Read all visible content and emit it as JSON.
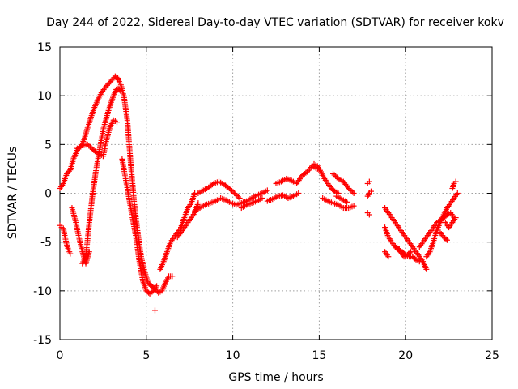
{
  "chart_data": {
    "type": "scatter",
    "title": "Day 244 of 2022, Sidereal Day-to-day VTEC variation (SDTVAR) for receiver kokv",
    "xlabel": "GPS time / hours",
    "ylabel": "SDTVAR / TECUs",
    "xlim": [
      0,
      25
    ],
    "ylim": [
      -15,
      15
    ],
    "xticks": [
      0,
      5,
      10,
      15,
      20,
      25
    ],
    "yticks": [
      -15,
      -10,
      -5,
      0,
      5,
      10,
      15
    ],
    "xtick_labels": [
      "0",
      "5",
      "10",
      "15",
      "20",
      "25"
    ],
    "ytick_labels": [
      "-15",
      "-10",
      "-5",
      "0",
      "5",
      "10",
      "15"
    ],
    "grid": true,
    "marker": "+",
    "series": [
      {
        "name": "SDTVAR",
        "color": "#ff0000",
        "tracks": [
          {
            "x": [
              0.0,
              0.2,
              0.4,
              0.6,
              0.8,
              1.0,
              1.2,
              1.4,
              1.6,
              1.8,
              2.0,
              2.2,
              2.4,
              2.6,
              2.8,
              3.0,
              3.2,
              3.35
            ],
            "y": [
              0.5,
              1.0,
              2.0,
              2.4,
              3.6,
              4.4,
              4.8,
              5.5,
              6.7,
              7.8,
              8.8,
              9.6,
              10.3,
              10.8,
              11.2,
              11.6,
              12.0,
              11.8
            ]
          },
          {
            "x": [
              1.0,
              1.3,
              1.6,
              1.9,
              2.1,
              2.3,
              2.5,
              2.7,
              2.9,
              3.1,
              3.3
            ],
            "y": [
              4.6,
              4.9,
              5.0,
              4.5,
              4.2,
              4.0,
              3.8,
              5.5,
              6.8,
              7.5,
              7.3
            ]
          },
          {
            "x": [
              0.0,
              0.1,
              0.2,
              0.3,
              0.4,
              0.5,
              0.6
            ],
            "y": [
              -3.3,
              -3.5,
              -3.6,
              -4.5,
              -5.3,
              -5.8,
              -6.2
            ]
          },
          {
            "x": [
              0.7,
              0.9,
              1.1,
              1.3,
              1.5,
              1.7
            ],
            "y": [
              -1.5,
              -2.8,
              -4.5,
              -6.0,
              -7.2,
              -6.0
            ]
          },
          {
            "x": [
              1.3,
              1.5,
              1.7,
              1.9,
              2.1,
              2.3,
              2.5,
              2.7,
              2.9,
              3.1,
              3.3,
              3.5
            ],
            "y": [
              -7.2,
              -6.5,
              -3.0,
              0.0,
              2.5,
              4.5,
              6.5,
              7.8,
              9.0,
              10.0,
              10.8,
              10.5
            ]
          },
          {
            "x": [
              3.3,
              3.5,
              3.7,
              3.9,
              4.1,
              4.3,
              4.5,
              4.7,
              4.9,
              5.1,
              5.3,
              5.5,
              5.7,
              5.9,
              6.1,
              6.3,
              6.5
            ],
            "y": [
              11.8,
              11.3,
              10.0,
              7.5,
              3.0,
              -1.0,
              -4.0,
              -6.5,
              -8.0,
              -9.2,
              -9.5,
              -9.8,
              -10.2,
              -10.0,
              -9.2,
              -8.5,
              -8.5
            ]
          },
          {
            "x": [
              3.6,
              3.8,
              4.0,
              4.2,
              4.4,
              4.6,
              4.8,
              5.0,
              5.2,
              5.4,
              5.6
            ],
            "y": [
              3.5,
              1.5,
              -0.5,
              -2.5,
              -4.5,
              -7.0,
              -9.0,
              -10.0,
              -10.3,
              -10.0,
              -9.5
            ]
          },
          {
            "x": [
              5.5
            ],
            "y": [
              -12.0
            ]
          },
          {
            "x": [
              5.8,
              6.0,
              6.2,
              6.4,
              6.6,
              6.8,
              7.0,
              7.2,
              7.4,
              7.6,
              7.8
            ],
            "y": [
              -7.8,
              -7.0,
              -6.0,
              -5.0,
              -4.5,
              -4.0,
              -3.5,
              -2.5,
              -1.5,
              -1.0,
              0.0
            ]
          },
          {
            "x": [
              6.8,
              7.0,
              7.2,
              7.4,
              7.6,
              7.8,
              8.0
            ],
            "y": [
              -4.5,
              -4.0,
              -3.5,
              -3.0,
              -2.5,
              -2.0,
              -1.0
            ]
          },
          {
            "x": [
              7.8,
              8.1,
              8.4,
              8.7,
              9.0,
              9.3,
              9.6,
              9.9,
              10.2,
              10.5,
              10.8,
              11.1,
              11.4,
              11.7,
              12.0
            ],
            "y": [
              -1.8,
              -1.5,
              -1.2,
              -1.0,
              -0.8,
              -0.5,
              -0.7,
              -1.0,
              -1.2,
              -1.0,
              -0.8,
              -0.5,
              -0.2,
              0.0,
              0.3
            ]
          },
          {
            "x": [
              8.0,
              8.3,
              8.6,
              8.9,
              9.2,
              9.5,
              9.8,
              10.1,
              10.4
            ],
            "y": [
              0.0,
              0.3,
              0.6,
              1.0,
              1.2,
              0.9,
              0.5,
              0.0,
              -0.5
            ]
          },
          {
            "x": [
              10.5,
              10.8,
              11.1,
              11.4,
              11.7
            ],
            "y": [
              -1.5,
              -1.2,
              -1.0,
              -0.8,
              -0.5
            ]
          },
          {
            "x": [
              12.0,
              12.3,
              12.6,
              12.9,
              13.2,
              13.5,
              13.8
            ],
            "y": [
              -0.8,
              -0.6,
              -0.3,
              -0.2,
              -0.5,
              -0.3,
              0.0
            ]
          },
          {
            "x": [
              12.5,
              12.8,
              13.1,
              13.4,
              13.7,
              14.0,
              14.3,
              14.6,
              14.9
            ],
            "y": [
              1.0,
              1.2,
              1.5,
              1.3,
              1.0,
              1.8,
              2.2,
              2.8,
              2.5
            ]
          },
          {
            "x": [
              14.7,
              14.9,
              15.1,
              15.3,
              15.5,
              15.7,
              15.9,
              16.1
            ],
            "y": [
              3.0,
              2.8,
              2.2,
              1.5,
              1.0,
              0.5,
              0.2,
              0.0
            ]
          },
          {
            "x": [
              15.2,
              15.5,
              15.8,
              16.1,
              16.4,
              16.7,
              17.0
            ],
            "y": [
              -0.5,
              -0.8,
              -1.0,
              -1.2,
              -1.5,
              -1.5,
              -1.3
            ]
          },
          {
            "x": [
              15.8,
              16.1,
              16.4,
              16.7,
              17.0
            ],
            "y": [
              2.0,
              1.5,
              1.2,
              0.5,
              0.0
            ]
          },
          {
            "x": [
              16.0,
              16.3,
              16.6
            ],
            "y": [
              -0.3,
              -0.6,
              -0.9
            ]
          },
          {
            "x": [
              17.8,
              17.9
            ],
            "y": [
              1.0,
              1.2
            ]
          },
          {
            "x": [
              17.8,
              17.9,
              18.0
            ],
            "y": [
              -0.3,
              0.0,
              0.2
            ]
          },
          {
            "x": [
              17.8,
              17.9
            ],
            "y": [
              -2.0,
              -2.2
            ]
          },
          {
            "x": [
              18.8,
              19.0,
              19.2,
              19.4,
              19.6,
              19.8,
              20.0,
              20.2,
              20.4,
              20.6,
              20.8,
              21.0,
              21.2
            ],
            "y": [
              -1.5,
              -2.0,
              -2.5,
              -3.0,
              -3.5,
              -4.0,
              -4.5,
              -5.0,
              -5.5,
              -6.0,
              -6.5,
              -7.0,
              -7.8
            ]
          },
          {
            "x": [
              18.8,
              19.0,
              19.2,
              19.4,
              19.6,
              19.8,
              20.0,
              20.2,
              20.4,
              20.6,
              20.8
            ],
            "y": [
              -3.5,
              -4.5,
              -5.0,
              -5.5,
              -5.8,
              -6.0,
              -6.3,
              -6.5,
              -6.5,
              -6.8,
              -7.0
            ]
          },
          {
            "x": [
              18.8,
              19.0
            ],
            "y": [
              -6.0,
              -6.5
            ]
          },
          {
            "x": [
              19.5,
              19.7,
              19.9,
              20.1,
              20.3
            ],
            "y": [
              -5.5,
              -6.0,
              -6.5,
              -6.3,
              -6.0
            ]
          },
          {
            "x": [
              20.8,
              21.0,
              21.2,
              21.4,
              21.6,
              21.8,
              22.0,
              22.2,
              22.4,
              22.6,
              22.8
            ],
            "y": [
              -5.5,
              -5.0,
              -4.5,
              -4.0,
              -3.5,
              -3.0,
              -2.8,
              -2.5,
              -2.2,
              -2.0,
              -2.5
            ]
          },
          {
            "x": [
              21.2,
              21.4,
              21.6,
              21.8,
              22.0,
              22.2,
              22.4,
              22.6,
              22.8,
              23.0
            ],
            "y": [
              -6.5,
              -6.0,
              -5.0,
              -3.8,
              -3.0,
              -2.2,
              -1.5,
              -1.0,
              -0.5,
              0.0
            ]
          },
          {
            "x": [
              22.7,
              22.8,
              22.9
            ],
            "y": [
              0.5,
              1.0,
              1.2
            ]
          },
          {
            "x": [
              22.0,
              22.2,
              22.4
            ],
            "y": [
              -4.0,
              -4.5,
              -4.8
            ]
          },
          {
            "x": [
              22.3,
              22.5,
              22.7,
              22.9
            ],
            "y": [
              -3.0,
              -3.5,
              -3.0,
              -2.5
            ]
          }
        ]
      }
    ]
  }
}
